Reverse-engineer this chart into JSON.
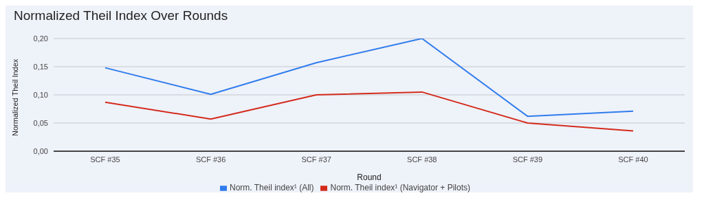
{
  "chart_data": {
    "type": "line",
    "title": "Normalized Theil Index Over Rounds",
    "xlabel": "Round",
    "ylabel": "Normalized Theil Index",
    "categories": [
      "SCF #35",
      "SCF #36",
      "SCF #37",
      "SCF #38",
      "SCF #39",
      "SCF #40"
    ],
    "series": [
      {
        "name": "Norm. Theil index¹ (All)",
        "color": "#2f7ced",
        "values": [
          0.148,
          0.101,
          0.157,
          0.2,
          0.062,
          0.071
        ]
      },
      {
        "name": "Norm. Theil index¹ (Navigator + Pilots)",
        "color": "#d42a1b",
        "values": [
          0.087,
          0.057,
          0.1,
          0.105,
          0.05,
          0.036
        ]
      }
    ],
    "ylim": [
      0,
      0.2
    ],
    "yticks": [
      {
        "value": 0,
        "label": "0,00"
      },
      {
        "value": 0.05,
        "label": "0,05"
      },
      {
        "value": 0.1,
        "label": "0,10"
      },
      {
        "value": 0.15,
        "label": "0,15"
      },
      {
        "value": 0.2,
        "label": "0,20"
      }
    ],
    "grid": "y",
    "legend": "bottom",
    "marker": "none"
  }
}
